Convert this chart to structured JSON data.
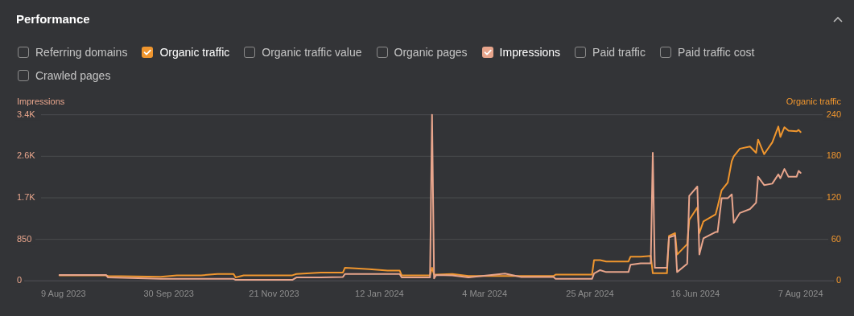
{
  "chart_data": {
    "type": "line",
    "title": "Performance",
    "ylabel": "Impressions",
    "y2label": "Organic traffic",
    "annotations": [
      "Referring domains",
      "Organic traffic value",
      "Organic pages",
      "Paid traffic",
      "Paid traffic cost",
      "Crawled pages"
    ],
    "x": [
      "2023-08-07",
      "2023-08-30",
      "2023-08-31",
      "2023-09-26",
      "2023-10-04",
      "2023-10-16",
      "2023-10-24",
      "2023-11-01",
      "2023-11-02",
      "2023-11-06",
      "2023-11-30",
      "2023-12-02",
      "2023-12-14",
      "2023-12-25",
      "2023-12-26",
      "2024-01-07",
      "2024-01-16",
      "2024-01-22",
      "2024-01-23",
      "2024-02-06",
      "2024-02-07",
      "2024-02-08",
      "2024-02-09",
      "2024-02-17",
      "2024-02-25",
      "2024-03-14",
      "2024-03-22",
      "2024-04-07",
      "2024-04-08",
      "2024-04-26",
      "2024-04-27",
      "2024-04-30",
      "2024-05-03",
      "2024-05-14",
      "2024-05-15",
      "2024-05-20",
      "2024-05-25",
      "2024-05-26",
      "2024-05-27",
      "2024-06-02",
      "2024-06-03",
      "2024-06-06",
      "2024-06-07",
      "2024-06-12",
      "2024-06-13",
      "2024-06-17",
      "2024-06-18",
      "2024-06-20",
      "2024-06-26",
      "2024-06-27",
      "2024-06-29",
      "2024-07-02",
      "2024-07-04",
      "2024-07-05",
      "2024-07-08",
      "2024-07-13",
      "2024-07-16",
      "2024-07-17",
      "2024-07-20",
      "2024-07-24",
      "2024-07-27",
      "2024-07-28",
      "2024-07-30",
      "2024-08-01",
      "2024-08-05",
      "2024-08-06",
      "2024-08-07"
    ],
    "series": [
      {
        "name": "Organic traffic",
        "color": "#f0962e",
        "axis": "y2",
        "values": [
          8,
          8,
          7,
          6,
          8,
          8,
          10,
          10,
          5,
          8,
          8,
          10,
          12,
          12,
          19,
          17,
          15,
          15,
          8,
          8,
          19,
          9,
          9,
          10,
          7,
          7,
          7,
          7,
          9,
          9,
          30,
          30,
          28,
          28,
          35,
          35,
          36,
          11,
          11,
          11,
          65,
          69,
          38,
          53,
          88,
          106,
          69,
          86,
          96,
          107,
          131,
          142,
          173,
          180,
          191,
          194,
          185,
          204,
          183,
          200,
          223,
          208,
          222,
          217,
          216,
          218,
          215
        ]
      },
      {
        "name": "Impressions",
        "color": "#e8a58c",
        "values": [
          120,
          120,
          70,
          40,
          40,
          40,
          40,
          40,
          20,
          20,
          20,
          70,
          70,
          80,
          140,
          140,
          140,
          140,
          70,
          70,
          3400,
          50,
          120,
          110,
          70,
          150,
          80,
          80,
          40,
          40,
          150,
          220,
          180,
          180,
          330,
          360,
          360,
          2620,
          270,
          270,
          890,
          930,
          180,
          350,
          1740,
          1930,
          540,
          870,
          1000,
          1000,
          1690,
          1690,
          1770,
          1190,
          1390,
          1470,
          1600,
          2130,
          1960,
          1990,
          2180,
          2100,
          2290,
          2130,
          2130,
          2250,
          2210
        ]
      }
    ],
    "xlim": [
      "2023-07-17",
      "2024-08-27"
    ],
    "xticks": [
      {
        "value": "2023-08-09",
        "label": "9 Aug 2023"
      },
      {
        "value": "2023-09-30",
        "label": "30 Sep 2023"
      },
      {
        "value": "2023-11-21",
        "label": "21 Nov 2023"
      },
      {
        "value": "2024-01-12",
        "label": "12 Jan 2024"
      },
      {
        "value": "2024-03-04",
        "label": "4 Mar 2024"
      },
      {
        "value": "2024-04-25",
        "label": "25 Apr 2024"
      },
      {
        "value": "2024-06-16",
        "label": "16 Jun 2024"
      },
      {
        "value": "2024-08-07",
        "label": "7 Aug 2024"
      }
    ],
    "ylim": [
      0,
      3400
    ],
    "yticks": [
      0,
      850,
      {
        "value": 1700,
        "label": "1.7K"
      },
      {
        "value": 2550,
        "label": "2.6K"
      },
      {
        "value": 3400,
        "label": "3.4K"
      }
    ],
    "y2lim": [
      0,
      240
    ],
    "y2ticks": [
      0,
      60,
      120,
      180,
      240
    ],
    "grid": "y",
    "legend": "top"
  }
}
